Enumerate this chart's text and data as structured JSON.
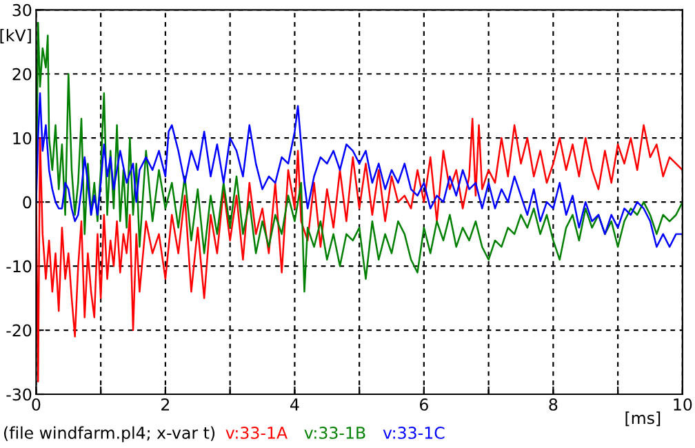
{
  "chart_data": {
    "type": "line",
    "xlabel": "[ms]",
    "ylabel": "[kV]",
    "xlim": [
      0,
      10
    ],
    "ylim": [
      -30,
      30
    ],
    "xticks": [
      0,
      {
        "value": 1,
        "label": null
      },
      2,
      {
        "value": 3,
        "label": null
      },
      4,
      {
        "value": 5,
        "label": null
      },
      6,
      {
        "value": 7,
        "label": null
      },
      8,
      {
        "value": 9,
        "label": null
      },
      10
    ],
    "yticks": [
      -30,
      -20,
      -10,
      0,
      10,
      20,
      30
    ],
    "grid": true,
    "legend": "bottom",
    "line_style": "solid",
    "marker": "none",
    "annotations": [
      "(file windfarm.pl4; x-var t)"
    ],
    "series": [
      {
        "name": "v:33-1A",
        "color": "#ff0000",
        "x": [
          0,
          0.03,
          0.06,
          0.1,
          0.15,
          0.2,
          0.25,
          0.3,
          0.35,
          0.4,
          0.45,
          0.5,
          0.55,
          0.6,
          0.65,
          0.7,
          0.75,
          0.8,
          0.85,
          0.9,
          0.95,
          1.0,
          1.05,
          1.1,
          1.15,
          1.2,
          1.25,
          1.3,
          1.35,
          1.4,
          1.45,
          1.5,
          1.55,
          1.6,
          1.7,
          1.8,
          1.9,
          2.0,
          2.1,
          2.2,
          2.3,
          2.4,
          2.5,
          2.6,
          2.7,
          2.8,
          2.9,
          3.0,
          3.1,
          3.2,
          3.3,
          3.4,
          3.5,
          3.6,
          3.7,
          3.8,
          3.9,
          4.0,
          4.05,
          4.1,
          4.2,
          4.3,
          4.4,
          4.5,
          4.6,
          4.7,
          4.8,
          4.9,
          5.0,
          5.1,
          5.2,
          5.3,
          5.4,
          5.5,
          5.6,
          5.7,
          5.8,
          5.9,
          6.0,
          6.1,
          6.2,
          6.3,
          6.4,
          6.5,
          6.6,
          6.7,
          6.75,
          6.8,
          6.85,
          6.9,
          7.0,
          7.1,
          7.2,
          7.3,
          7.4,
          7.5,
          7.6,
          7.7,
          7.8,
          7.9,
          8.0,
          8.1,
          8.2,
          8.3,
          8.4,
          8.5,
          8.6,
          8.7,
          8.8,
          8.9,
          9.0,
          9.1,
          9.2,
          9.3,
          9.4,
          9.5,
          9.6,
          9.7,
          9.8,
          9.9,
          10.0
        ],
        "values": [
          0,
          -28,
          10,
          -5,
          -12,
          -6,
          -14,
          -8,
          -17,
          -4,
          -12,
          -8,
          -15,
          -21,
          -10,
          -3,
          -18,
          -8,
          -14,
          -18,
          -5,
          -15,
          -2,
          -12,
          -6,
          -10,
          -3,
          -11,
          -5,
          -8,
          -2,
          -20,
          -5,
          -14,
          -3,
          -8,
          -5,
          -12,
          -2,
          -8,
          1,
          -14,
          -4,
          -15,
          -2,
          -8,
          2,
          -6,
          1,
          -9,
          3,
          -5,
          -1,
          -8,
          3,
          -11,
          5,
          -1,
          8,
          -3,
          -6,
          3,
          -7,
          2,
          -4,
          5,
          -3,
          7,
          -1,
          6,
          -2,
          5,
          -3,
          4,
          0,
          1,
          -1,
          5,
          0,
          7,
          -3,
          8,
          2,
          5,
          -1,
          4,
          13,
          1,
          12,
          2,
          5,
          3,
          10,
          4,
          12,
          6,
          10,
          4,
          8,
          3,
          6,
          10,
          5,
          9,
          4,
          10,
          5,
          2,
          8,
          3,
          9,
          6,
          10,
          5,
          12,
          7,
          9,
          4,
          7,
          6,
          5
        ]
      },
      {
        "name": "v:33-1B",
        "color": "#008000",
        "x": [
          0,
          0.03,
          0.06,
          0.1,
          0.15,
          0.18,
          0.2,
          0.25,
          0.3,
          0.35,
          0.4,
          0.45,
          0.5,
          0.55,
          0.6,
          0.65,
          0.7,
          0.75,
          0.8,
          0.85,
          0.9,
          0.95,
          1.0,
          1.05,
          1.1,
          1.15,
          1.2,
          1.25,
          1.3,
          1.35,
          1.4,
          1.45,
          1.5,
          1.55,
          1.6,
          1.7,
          1.8,
          1.9,
          2.0,
          2.1,
          2.2,
          2.3,
          2.4,
          2.5,
          2.6,
          2.7,
          2.8,
          2.9,
          3.0,
          3.1,
          3.2,
          3.3,
          3.4,
          3.5,
          3.6,
          3.7,
          3.8,
          3.9,
          4.0,
          4.1,
          4.15,
          4.2,
          4.3,
          4.4,
          4.5,
          4.6,
          4.7,
          4.8,
          4.9,
          5.0,
          5.1,
          5.2,
          5.3,
          5.4,
          5.5,
          5.6,
          5.7,
          5.8,
          5.9,
          6.0,
          6.1,
          6.2,
          6.3,
          6.4,
          6.5,
          6.6,
          6.7,
          6.8,
          6.9,
          7.0,
          7.1,
          7.2,
          7.3,
          7.4,
          7.5,
          7.6,
          7.7,
          7.8,
          7.9,
          8.0,
          8.1,
          8.2,
          8.3,
          8.4,
          8.5,
          8.6,
          8.7,
          8.8,
          8.9,
          9.0,
          9.1,
          9.2,
          9.3,
          9.4,
          9.5,
          9.6,
          9.7,
          9.8,
          9.9,
          10.0
        ],
        "values": [
          0,
          28,
          18,
          24,
          21,
          26,
          10,
          5,
          12,
          2,
          9,
          -2,
          20,
          5,
          -2,
          3,
          13,
          -5,
          6,
          -2,
          3,
          -3,
          5,
          17,
          -2,
          8,
          -1,
          12,
          -3,
          5,
          -4,
          10,
          -2,
          6,
          -7,
          8,
          -3,
          5,
          -1,
          3,
          -4,
          4,
          -6,
          2,
          -8,
          1,
          -5,
          3,
          -4,
          4,
          -5,
          0,
          -8,
          -3,
          -7,
          -2,
          -5,
          1,
          -3,
          3,
          -14,
          -4,
          -7,
          -3,
          -9,
          -5,
          -10,
          -5,
          -6,
          -4,
          -12,
          -3,
          -9,
          -5,
          -8,
          -3,
          -5,
          -9,
          -11,
          -4,
          -8,
          -3,
          -6,
          -2,
          -7,
          -4,
          -6,
          -3,
          -7,
          -9,
          -6,
          -7,
          -4,
          -5,
          -2,
          -4,
          -1,
          -5,
          -2,
          -6,
          -9,
          -4,
          -2,
          -6,
          -1,
          -4,
          -2,
          -5,
          -3,
          -7,
          -3,
          -1,
          -2,
          0,
          -2,
          -5,
          -2,
          -3,
          -2,
          0
        ]
      },
      {
        "name": "v:33-1C",
        "color": "#0000ff",
        "x": [
          0,
          0.03,
          0.06,
          0.1,
          0.15,
          0.2,
          0.25,
          0.3,
          0.35,
          0.4,
          0.45,
          0.5,
          0.55,
          0.6,
          0.65,
          0.7,
          0.75,
          0.8,
          0.85,
          0.9,
          0.95,
          1.0,
          1.05,
          1.1,
          1.15,
          1.2,
          1.3,
          1.4,
          1.5,
          1.55,
          1.6,
          1.7,
          1.8,
          1.9,
          2.0,
          2.05,
          2.1,
          2.2,
          2.3,
          2.4,
          2.5,
          2.6,
          2.7,
          2.8,
          2.9,
          3.0,
          3.1,
          3.2,
          3.3,
          3.4,
          3.5,
          3.6,
          3.7,
          3.8,
          3.9,
          4.0,
          4.05,
          4.1,
          4.15,
          4.2,
          4.3,
          4.4,
          4.5,
          4.6,
          4.7,
          4.8,
          4.9,
          5.0,
          5.1,
          5.2,
          5.3,
          5.4,
          5.5,
          5.6,
          5.7,
          5.8,
          5.9,
          6.0,
          6.1,
          6.2,
          6.3,
          6.4,
          6.5,
          6.6,
          6.7,
          6.8,
          6.9,
          7.0,
          7.1,
          7.2,
          7.3,
          7.4,
          7.5,
          7.6,
          7.7,
          7.8,
          7.9,
          8.0,
          8.1,
          8.2,
          8.3,
          8.4,
          8.5,
          8.6,
          8.7,
          8.8,
          8.9,
          9.0,
          9.1,
          9.2,
          9.3,
          9.4,
          9.5,
          9.6,
          9.7,
          9.8,
          9.9,
          10.0
        ],
        "values": [
          0,
          10,
          17,
          8,
          12,
          5,
          2,
          0,
          -1,
          -1,
          3,
          2,
          -1,
          -3,
          -2,
          2,
          7,
          3,
          -2,
          1,
          -2,
          3,
          9,
          4,
          7,
          2,
          8,
          3,
          6,
          0,
          5,
          7,
          5,
          8,
          4,
          11,
          12,
          8,
          3,
          8,
          5,
          11,
          4,
          9,
          3,
          10,
          8,
          4,
          12,
          6,
          2,
          4,
          3,
          7,
          6,
          11,
          15,
          9,
          3,
          -1,
          4,
          7,
          6,
          8,
          5,
          9,
          8,
          6,
          8,
          3,
          6,
          2,
          5,
          3,
          6,
          2,
          1,
          3,
          -1,
          1,
          0,
          4,
          1,
          5,
          2,
          3,
          -1,
          3,
          -1,
          2,
          0,
          4,
          1,
          -2,
          2,
          -3,
          0,
          -1,
          3,
          -2,
          1,
          -4,
          0,
          -3,
          -2,
          -5,
          -2,
          -4,
          -1,
          -2,
          0,
          -1,
          -3,
          -7,
          -5,
          -7,
          -5,
          -5
        ]
      }
    ]
  }
}
